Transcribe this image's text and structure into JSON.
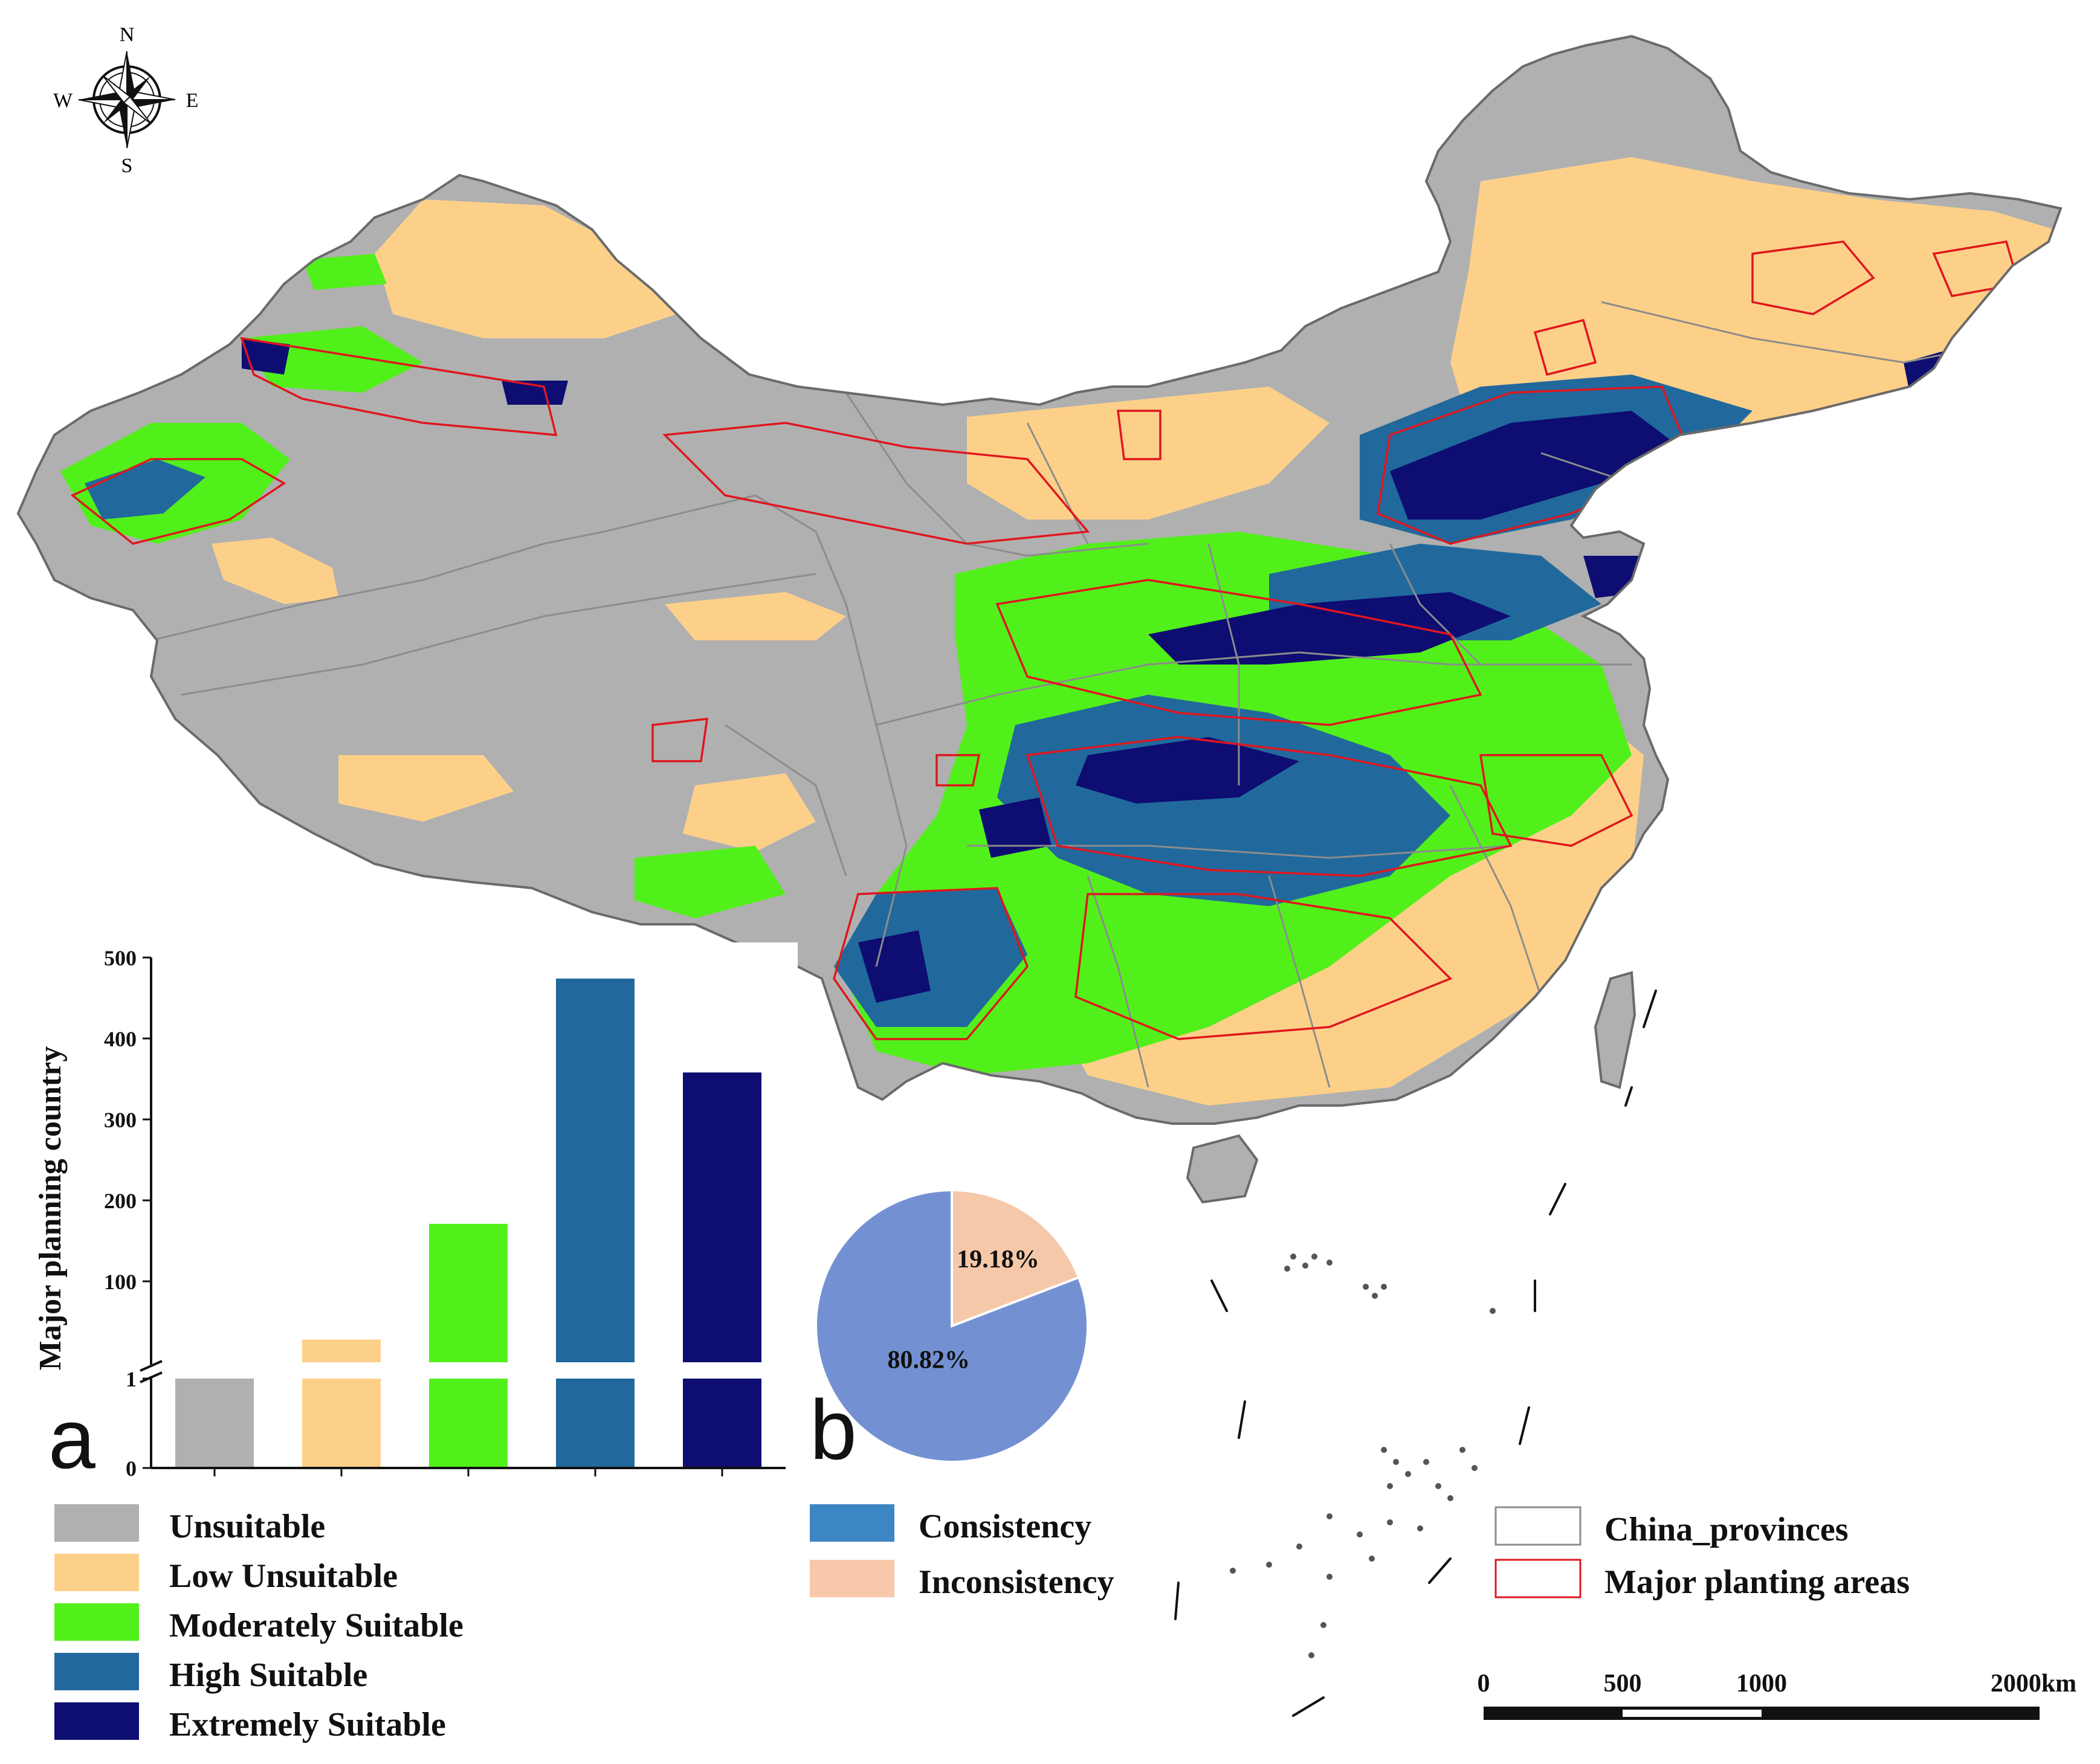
{
  "compass": {
    "north": "N",
    "south": "S",
    "east": "E",
    "west": "W"
  },
  "colors": {
    "unsuitable": "#b0b0b0",
    "low_unsuitable": "#fdd08a",
    "moderately_suitable": "#52f01a",
    "high_suitable": "#21699c",
    "extremely_suitable": "#0d0d72",
    "consistency": "#3d86c4",
    "inconsistency": "#f7c8aa",
    "pie_consistency": "#7391d2",
    "pie_inconsistency": "#f6c8aa",
    "planting_areas": "#e0161e",
    "province_border": "#8c8c8c"
  },
  "panel_a": {
    "letter": "a"
  },
  "panel_b": {
    "letter": "b"
  },
  "chart_data": [
    {
      "type": "bar",
      "ylabel": "Major planning country",
      "categories": [
        "Unsuitable",
        "Low Unsuitable",
        "Moderately Suitable",
        "High Suitable",
        "Extremely Suitable"
      ],
      "values": [
        1,
        28,
        171,
        474,
        358
      ],
      "colors": [
        "#b0b0b0",
        "#fdd08a",
        "#52f01a",
        "#21699c",
        "#0d0d72"
      ],
      "axis_break": true,
      "lower_segment": {
        "ylim": [
          0,
          1
        ],
        "ticks": [
          "0",
          "1"
        ]
      },
      "upper_segment": {
        "ylim": [
          0,
          500
        ],
        "ticks": [
          "100",
          "200",
          "300",
          "400",
          "500"
        ]
      }
    },
    {
      "type": "pie",
      "labels": [
        "Consistency",
        "Inconsistency"
      ],
      "values": [
        80.82,
        19.18
      ],
      "value_labels": [
        "80.82%",
        "19.18%"
      ],
      "colors": [
        "#7391d2",
        "#f6c8aa"
      ]
    }
  ],
  "legend_suitability": [
    {
      "label": "Unsuitable",
      "color": "#b0b0b0"
    },
    {
      "label": "Low Unsuitable",
      "color": "#fdd08a"
    },
    {
      "label": "Moderately Suitable",
      "color": "#52f01a"
    },
    {
      "label": "High Suitable",
      "color": "#21699c"
    },
    {
      "label": "Extremely Suitable",
      "color": "#0d0d72"
    }
  ],
  "legend_consistency": [
    {
      "label": "Consistency",
      "color": "#3d86c4"
    },
    {
      "label": "Inconsistency",
      "color": "#f7c8aa"
    }
  ],
  "legend_boundaries": [
    {
      "label": "China_provinces",
      "stroke": "#8c8c8c"
    },
    {
      "label": "Major planting areas",
      "stroke": "#e0161e"
    }
  ],
  "scale_bar": {
    "labels": [
      "0",
      "500",
      "1000",
      "2000km"
    ]
  }
}
